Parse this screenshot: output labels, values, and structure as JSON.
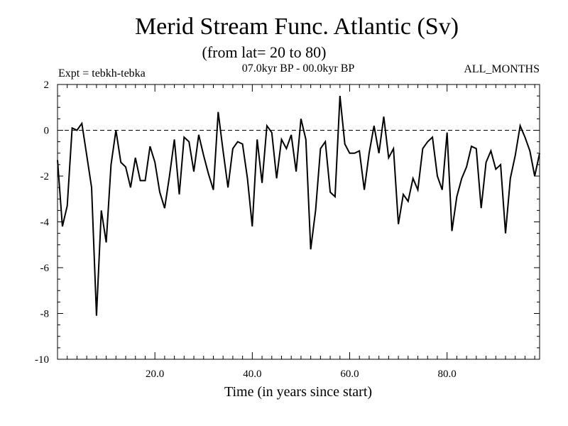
{
  "chart_data": {
    "type": "line",
    "title": "Merid Stream Func. Atlantic (Sv)",
    "subtitle": "(from lat= 20 to 80)",
    "experiment": "Expt = tebkh-tebka",
    "period": "07.0kyr BP - 00.0kyr BP",
    "months": "ALL_MONTHS",
    "xlabel": "Time (in years since start)",
    "ylabel": "",
    "xlim": [
      0,
      99
    ],
    "ylim": [
      -10,
      2
    ],
    "xticks": [
      20,
      40,
      60,
      80
    ],
    "xtick_labels": [
      "20.0",
      "40.0",
      "60.0",
      "80.0"
    ],
    "yticks": [
      2,
      0,
      -2,
      -4,
      -6,
      -8,
      -10
    ],
    "ytick_labels": [
      "2",
      "0",
      "-2",
      "-4",
      "-6",
      "-8",
      "-10"
    ],
    "reference_line": {
      "y": 0,
      "style": "dashed"
    },
    "x": [
      0,
      1,
      2,
      3,
      4,
      5,
      6,
      7,
      8,
      9,
      10,
      11,
      12,
      13,
      14,
      15,
      16,
      17,
      18,
      19,
      20,
      21,
      22,
      23,
      24,
      25,
      26,
      27,
      28,
      29,
      30,
      31,
      32,
      33,
      34,
      35,
      36,
      37,
      38,
      39,
      40,
      41,
      42,
      43,
      44,
      45,
      46,
      47,
      48,
      49,
      50,
      51,
      52,
      53,
      54,
      55,
      56,
      57,
      58,
      59,
      60,
      61,
      62,
      63,
      64,
      65,
      66,
      67,
      68,
      69,
      70,
      71,
      72,
      73,
      74,
      75,
      76,
      77,
      78,
      79,
      80,
      81,
      82,
      83,
      84,
      85,
      86,
      87,
      88,
      89,
      90,
      91,
      92,
      93,
      94,
      95,
      96,
      97,
      98,
      99
    ],
    "series": [
      {
        "name": "tebkh-tebka",
        "values": [
          -1.3,
          -4.2,
          -3.3,
          0.1,
          0.0,
          0.3,
          -1.1,
          -2.5,
          -8.1,
          -3.5,
          -4.9,
          -1.5,
          0.0,
          -1.4,
          -1.6,
          -2.5,
          -1.2,
          -2.2,
          -2.2,
          -0.7,
          -1.4,
          -2.7,
          -3.4,
          -2.0,
          -0.4,
          -2.8,
          -0.3,
          -0.5,
          -1.8,
          -0.2,
          -1.1,
          -1.9,
          -2.6,
          0.8,
          -0.9,
          -2.5,
          -0.8,
          -0.5,
          -0.6,
          -2.1,
          -4.2,
          -0.4,
          -2.3,
          0.2,
          -0.1,
          -2.1,
          -0.4,
          -0.8,
          -0.2,
          -1.8,
          0.5,
          -0.4,
          -5.2,
          -3.5,
          -0.8,
          -0.5,
          -2.7,
          -2.9,
          1.5,
          -0.6,
          -1.0,
          -1.0,
          -0.9,
          -2.6,
          -1.0,
          0.2,
          -1.0,
          0.6,
          -1.2,
          -0.8,
          -4.1,
          -2.8,
          -3.1,
          -2.1,
          -2.6,
          -0.8,
          -0.5,
          -0.3,
          -2.0,
          -2.6,
          -0.1,
          -4.4,
          -2.9,
          -2.1,
          -1.6,
          -0.7,
          -0.8,
          -3.4,
          -1.4,
          -0.9,
          -1.7,
          -1.5,
          -4.5,
          -2.1,
          -1.1,
          0.2,
          -0.3,
          -0.9,
          -2.0,
          -1.0
        ]
      }
    ]
  }
}
